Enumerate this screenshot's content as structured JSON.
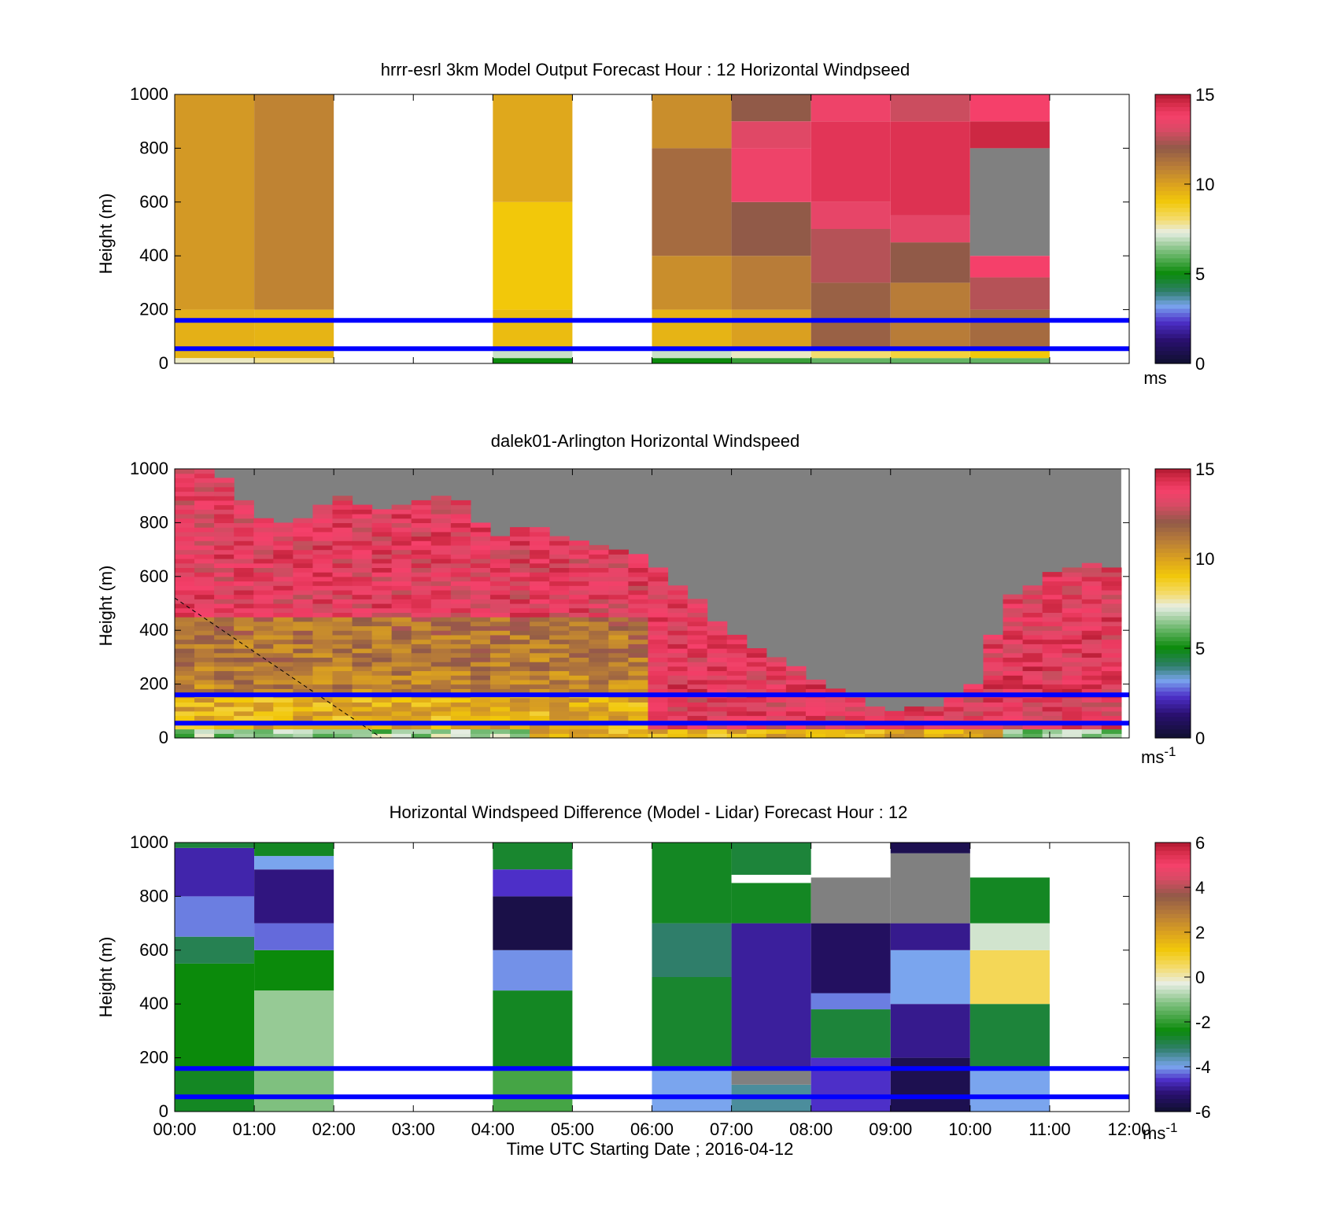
{
  "figure": {
    "xlabel": "Time UTC  Starting Date ; 2016-04-12",
    "x_ticks": [
      "00:00",
      "01:00",
      "02:00",
      "03:00",
      "04:00",
      "05:00",
      "06:00",
      "07:00",
      "08:00",
      "09:00",
      "10:00",
      "11:00",
      "12:00"
    ],
    "y_ticks": [
      "0",
      "200",
      "400",
      "600",
      "800",
      "1000"
    ],
    "ylabel": "Height (m)"
  },
  "chart_data": [
    {
      "type": "heatmap",
      "title": "hrrr-esrl 3km Model Output   Forecast Hour : 12 Horizontal Windpseed",
      "xlabel": "",
      "ylabel": "Height (m)",
      "xlim_hours": [
        0,
        12
      ],
      "ylim": [
        0,
        1000
      ],
      "colorbar": {
        "scale": "speed",
        "ticks": [
          "15",
          "10",
          "5",
          "0"
        ],
        "range": [
          0,
          15
        ],
        "unit": "ms"
      },
      "reference_lines_m": [
        160,
        55
      ],
      "reference_line_color": "#0000ff",
      "grid": false,
      "columns_speed_ms": [
        {
          "x": 0,
          "levels": [
            [
              0,
              20,
              7.5
            ],
            [
              20,
              60,
              9.5
            ],
            [
              60,
              200,
              9.6
            ],
            [
              200,
              1000,
              10.2
            ]
          ]
        },
        {
          "x": 1,
          "levels": [
            [
              0,
              20,
              7.8
            ],
            [
              20,
              60,
              9.5
            ],
            [
              60,
              200,
              9.5
            ],
            [
              200,
              1000,
              10.8
            ]
          ]
        },
        {
          "x": 4,
          "levels": [
            [
              0,
              20,
              5.0
            ],
            [
              20,
              60,
              7.0
            ],
            [
              60,
              200,
              9.3
            ],
            [
              200,
              600,
              9.0
            ],
            [
              600,
              1000,
              9.8
            ]
          ]
        },
        {
          "x": 6,
          "levels": [
            [
              0,
              20,
              5.0
            ],
            [
              20,
              60,
              7.0
            ],
            [
              60,
              200,
              9.5
            ],
            [
              200,
              400,
              10.5
            ],
            [
              400,
              800,
              11.5
            ],
            [
              800,
              1000,
              10.5
            ]
          ]
        },
        {
          "x": 7,
          "levels": [
            [
              0,
              20,
              5.5
            ],
            [
              20,
              60,
              7.5
            ],
            [
              60,
              200,
              10.0
            ],
            [
              200,
              400,
              11.0
            ],
            [
              400,
              600,
              12.0
            ],
            [
              600,
              800,
              13.6
            ],
            [
              800,
              900,
              13.2
            ],
            [
              900,
              1000,
              12.0
            ]
          ]
        },
        {
          "x": 8,
          "levels": [
            [
              0,
              20,
              6.0
            ],
            [
              20,
              60,
              8.0
            ],
            [
              60,
              300,
              11.8
            ],
            [
              300,
              500,
              12.5
            ],
            [
              500,
              600,
              13.4
            ],
            [
              600,
              900,
              14.2
            ],
            [
              900,
              1000,
              13.6
            ]
          ]
        },
        {
          "x": 9,
          "levels": [
            [
              0,
              20,
              6.0
            ],
            [
              20,
              60,
              8.5
            ],
            [
              60,
              300,
              11.0
            ],
            [
              300,
              450,
              12.0
            ],
            [
              450,
              550,
              13.3
            ],
            [
              550,
              900,
              14.3
            ],
            [
              900,
              1000,
              12.8
            ]
          ]
        },
        {
          "x": 10,
          "levels": [
            [
              0,
              20,
              6.0
            ],
            [
              20,
              60,
              9.0
            ],
            [
              60,
              200,
              11.5
            ],
            [
              200,
              320,
              12.5
            ],
            [
              320,
              400,
              13.8
            ],
            [
              400,
              800,
              null
            ],
            [
              800,
              900,
              14.6
            ],
            [
              900,
              1000,
              13.8
            ]
          ]
        }
      ]
    },
    {
      "type": "heatmap",
      "title": "dalek01-Arlington  Horizontal Windspeed",
      "xlabel": "",
      "ylabel": "Height (m)",
      "xlim_hours": [
        0,
        12
      ],
      "ylim": [
        0,
        1000
      ],
      "colorbar": {
        "scale": "speed",
        "ticks": [
          "15",
          "10",
          "5",
          "0"
        ],
        "range": [
          0,
          15
        ],
        "unit": "ms-1"
      },
      "reference_lines_m": [
        160,
        55
      ],
      "reference_line_color": "#0000ff",
      "grid": false,
      "dashed_line_hours_m": [
        [
          0,
          520
        ],
        [
          2.6,
          0
        ]
      ],
      "data_top_profile_m": [
        [
          0,
          1000
        ],
        [
          0.5,
          1000
        ],
        [
          1.0,
          820
        ],
        [
          1.5,
          780
        ],
        [
          2.0,
          900
        ],
        [
          2.5,
          830
        ],
        [
          3.0,
          870
        ],
        [
          3.5,
          900
        ],
        [
          4.0,
          740
        ],
        [
          4.5,
          780
        ],
        [
          5.0,
          720
        ],
        [
          5.5,
          700
        ],
        [
          6.0,
          650
        ],
        [
          6.5,
          520
        ],
        [
          7.0,
          380
        ],
        [
          7.5,
          300
        ],
        [
          8.0,
          220
        ],
        [
          8.5,
          150
        ],
        [
          9.0,
          90
        ],
        [
          9.5,
          110
        ],
        [
          10.0,
          170
        ],
        [
          10.5,
          520
        ],
        [
          11.0,
          600
        ],
        [
          11.5,
          650
        ],
        [
          11.9,
          620
        ]
      ]
    },
    {
      "type": "heatmap",
      "title": "Horizontal Windspeed Difference (Model - Lidar) Forecast Hour : 12",
      "xlabel": "Time UTC  Starting Date ; 2016-04-12",
      "ylabel": "Height (m)",
      "xlim_hours": [
        0,
        12
      ],
      "ylim": [
        0,
        1000
      ],
      "colorbar": {
        "scale": "diff",
        "ticks": [
          "6",
          "4",
          "2",
          "0",
          "-2",
          "-4",
          "-6"
        ],
        "range": [
          -6,
          6
        ],
        "unit": "ms-1"
      },
      "reference_lines_m": [
        160,
        55
      ],
      "reference_line_color": "#0000ff",
      "grid": false,
      "columns_diff_ms": [
        {
          "x": 0,
          "levels": [
            [
              0,
              160,
              -2.6
            ],
            [
              160,
              550,
              -2.4
            ],
            [
              550,
              650,
              -3.0
            ],
            [
              650,
              800,
              -4.2
            ],
            [
              800,
              980,
              -4.8
            ],
            [
              980,
              1000,
              -2.8
            ]
          ]
        },
        {
          "x": 1,
          "levels": [
            [
              0,
              160,
              -1.2
            ],
            [
              160,
              450,
              -1.0
            ],
            [
              450,
              600,
              -2.4
            ],
            [
              600,
              700,
              -4.3
            ],
            [
              700,
              900,
              -5.1
            ],
            [
              900,
              950,
              -4.0
            ],
            [
              950,
              1000,
              -2.6
            ]
          ]
        },
        {
          "x": 4,
          "levels": [
            [
              0,
              160,
              -1.8
            ],
            [
              160,
              450,
              -2.6
            ],
            [
              450,
              600,
              -4.1
            ],
            [
              600,
              800,
              -5.7
            ],
            [
              800,
              900,
              -4.6
            ],
            [
              900,
              1000,
              -2.7
            ]
          ]
        },
        {
          "x": 6,
          "levels": [
            [
              0,
              160,
              -4.0
            ],
            [
              160,
              500,
              -2.7
            ],
            [
              500,
              700,
              -3.2
            ],
            [
              700,
              1000,
              -2.6
            ]
          ]
        },
        {
          "x": 7,
          "levels": [
            [
              0,
              100,
              -3.5
            ],
            [
              100,
              160,
              null
            ],
            [
              160,
              700,
              -4.9
            ],
            [
              700,
              850,
              -2.6
            ],
            [
              850,
              880,
              "white"
            ],
            [
              880,
              1000,
              -2.8
            ]
          ]
        },
        {
          "x": 8,
          "levels": [
            [
              0,
              200,
              -4.6
            ],
            [
              200,
              380,
              -2.8
            ],
            [
              380,
              440,
              -4.2
            ],
            [
              440,
              700,
              -5.4
            ],
            [
              700,
              870,
              null
            ]
          ]
        },
        {
          "x": 9,
          "levels": [
            [
              0,
              200,
              -5.6
            ],
            [
              200,
              400,
              -5.0
            ],
            [
              400,
              600,
              -4.0
            ],
            [
              600,
              700,
              -5.0
            ],
            [
              700,
              960,
              null
            ],
            [
              960,
              1000,
              -5.6
            ]
          ]
        },
        {
          "x": 10,
          "levels": [
            [
              0,
              160,
              -4.0
            ],
            [
              160,
              400,
              -2.8
            ],
            [
              400,
              600,
              0.6
            ],
            [
              600,
              700,
              -0.5
            ],
            [
              700,
              870,
              -2.6
            ]
          ]
        }
      ]
    }
  ],
  "colorbar_units": {
    "top": "ms",
    "middle": "ms",
    "middle_sup": "-1",
    "bottom": "ms",
    "bottom_sup": "-1"
  },
  "colors": {
    "missing": "#808080",
    "reference_line": "#0000ff"
  }
}
